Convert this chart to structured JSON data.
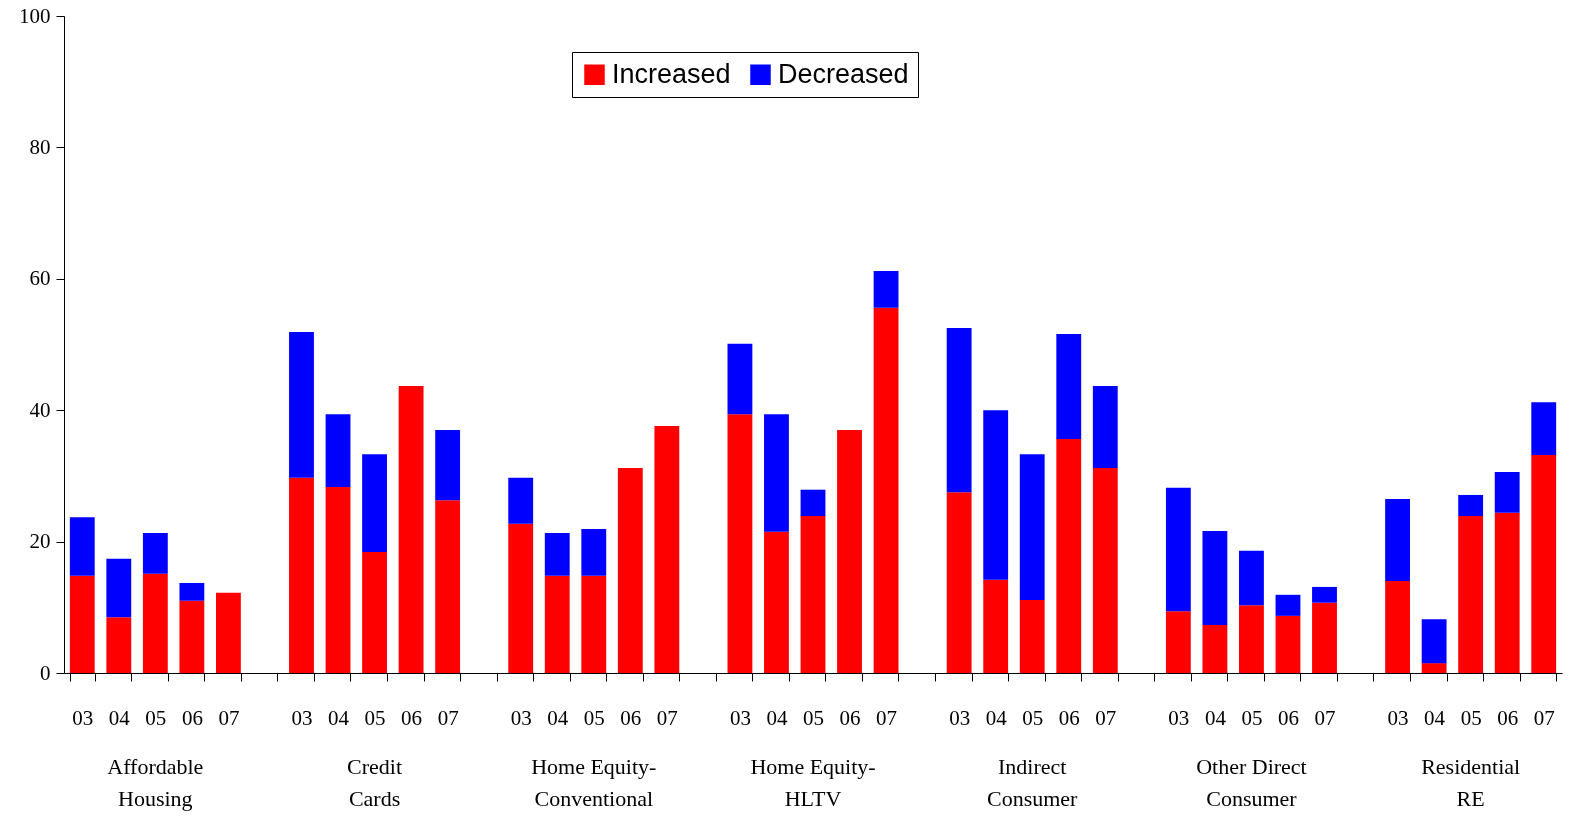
{
  "chart_data": {
    "type": "bar",
    "stacked": true,
    "categories": [
      "03",
      "04",
      "05",
      "06",
      "07",
      null,
      "03",
      "04",
      "05",
      "06",
      "07",
      null,
      "03",
      "04",
      "05",
      "06",
      "07",
      null,
      "03",
      "04",
      "05",
      "06",
      "07",
      null,
      "03",
      "04",
      "05",
      "06",
      "07",
      null,
      "03",
      "04",
      "05",
      "06",
      "07",
      null,
      "03",
      "04",
      "05",
      "06",
      "07"
    ],
    "series": [
      {
        "name": "Increased",
        "color": "#ff0000",
        "values": [
          14.8,
          8.5,
          15.1,
          11.0,
          12.2,
          null,
          29.7,
          28.3,
          18.4,
          43.7,
          26.3,
          null,
          22.7,
          14.8,
          14.8,
          31.2,
          37.6,
          null,
          39.4,
          21.5,
          23.9,
          37.0,
          55.6,
          null,
          27.5,
          14.2,
          11.1,
          35.6,
          31.2,
          null,
          9.4,
          7.3,
          10.3,
          8.7,
          10.7,
          null,
          14.0,
          1.5,
          23.9,
          24.4,
          33.2
        ]
      },
      {
        "name": "Decreased",
        "color": "#0000ff",
        "values": [
          8.9,
          8.9,
          6.2,
          2.7,
          null,
          null,
          22.2,
          11.1,
          14.9,
          null,
          10.7,
          null,
          7.0,
          6.5,
          7.1,
          null,
          null,
          null,
          10.7,
          17.9,
          4.0,
          null,
          5.6,
          null,
          25.0,
          25.8,
          22.2,
          16.0,
          12.5,
          null,
          18.8,
          14.3,
          8.3,
          3.2,
          2.4,
          null,
          12.5,
          6.7,
          3.2,
          6.2,
          8.0
        ]
      }
    ],
    "ylim": [
      0,
      100
    ],
    "yticks": [
      0,
      20,
      40,
      60,
      80,
      100
    ],
    "grid": false,
    "legend": "top",
    "annotations": [
      "Affordable\nHousing",
      "Credit\nCards",
      "Home Equity-\nConventional",
      "Home Equity-\nHLTV",
      "Indirect\nConsumer",
      "Other Direct\nConsumer",
      "Residential\nRE"
    ]
  }
}
